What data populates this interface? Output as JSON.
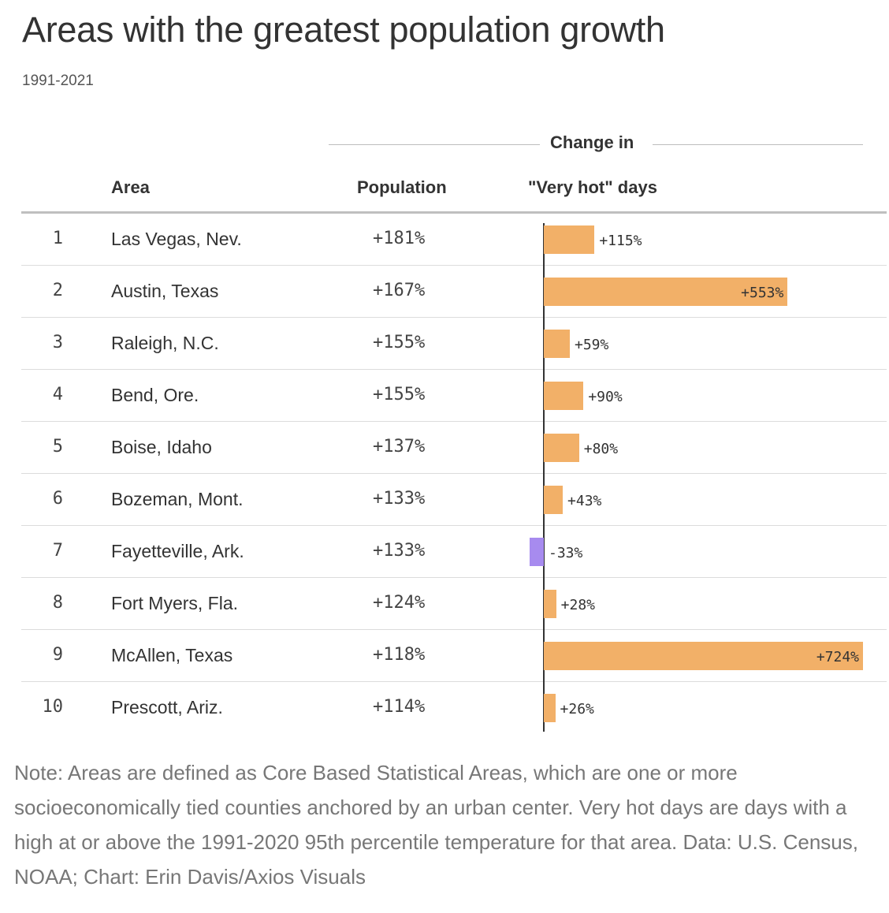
{
  "header": {
    "title": "Areas with the greatest population growth",
    "subtitle": "1991-2021"
  },
  "columns": {
    "group_label": "Change in",
    "area": "Area",
    "population": "Population",
    "very_hot_days": "\"Very hot\" days"
  },
  "colors": {
    "positive": "#f2b068",
    "negative": "#a78bef"
  },
  "chart_data": {
    "type": "table",
    "title": "Areas with the greatest population growth",
    "subtitle": "1991-2021",
    "rows": [
      {
        "rank": "1",
        "area": "Las Vegas, Nev.",
        "population": "+181%",
        "hot_days_label": "+115%",
        "hot_days": 115
      },
      {
        "rank": "2",
        "area": "Austin, Texas",
        "population": "+167%",
        "hot_days_label": "+553%",
        "hot_days": 553
      },
      {
        "rank": "3",
        "area": "Raleigh, N.C.",
        "population": "+155%",
        "hot_days_label": "+59%",
        "hot_days": 59
      },
      {
        "rank": "4",
        "area": "Bend, Ore.",
        "population": "+155%",
        "hot_days_label": "+90%",
        "hot_days": 90
      },
      {
        "rank": "5",
        "area": "Boise, Idaho",
        "population": "+137%",
        "hot_days_label": "+80%",
        "hot_days": 80
      },
      {
        "rank": "6",
        "area": "Bozeman, Mont.",
        "population": "+133%",
        "hot_days_label": "+43%",
        "hot_days": 43
      },
      {
        "rank": "7",
        "area": "Fayetteville, Ark.",
        "population": "+133%",
        "hot_days_label": "-33%",
        "hot_days": -33
      },
      {
        "rank": "8",
        "area": "Fort Myers, Fla.",
        "population": "+124%",
        "hot_days_label": "+28%",
        "hot_days": 28
      },
      {
        "rank": "9",
        "area": "McAllen, Texas",
        "population": "+118%",
        "hot_days_label": "+724%",
        "hot_days": 724
      },
      {
        "rank": "10",
        "area": "Prescott, Ariz.",
        "population": "+114%",
        "hot_days_label": "+26%",
        "hot_days": 26
      }
    ]
  },
  "footer": {
    "note": "Note: Areas are defined as Core Based Statistical Areas, which are one or more socioeconomically tied counties anchored by an urban center. Very hot days are days with a high at or above the 1991-2020 95th percentile temperature for that area. Data: U.S. Census, NOAA; Chart: Erin Davis/Axios Visuals"
  }
}
